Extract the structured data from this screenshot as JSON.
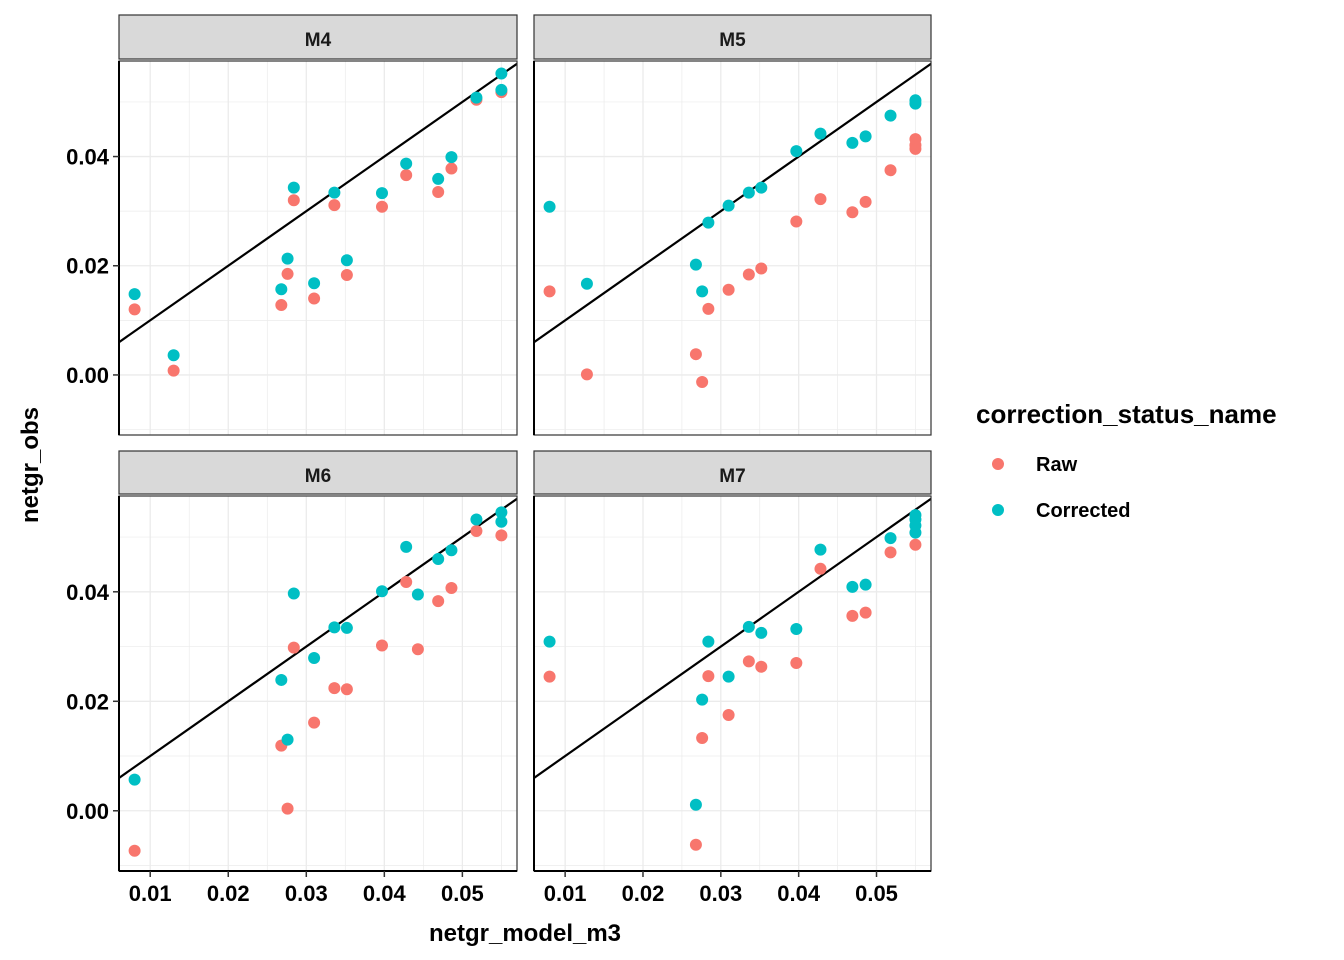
{
  "chart_data": {
    "type": "scatter",
    "xlabel": "netgr_model_m3",
    "ylabel": "netgr_obs",
    "xlim": [
      0.006,
      0.057
    ],
    "ylim": [
      -0.011,
      0.0575
    ],
    "x_ticks": [
      0.01,
      0.02,
      0.03,
      0.04,
      0.05
    ],
    "x_tick_labels": [
      "0.01",
      "0.02",
      "0.03",
      "0.04",
      "0.05"
    ],
    "y_ticks": [
      0.0,
      0.02,
      0.04
    ],
    "y_tick_labels": [
      "0.00",
      "0.02",
      "0.04"
    ],
    "grid": true,
    "reference_line": {
      "intercept": 0,
      "slope": 1
    },
    "legend": {
      "title": "correction_status_name",
      "position": "right",
      "entries": [
        {
          "name": "Raw",
          "color": "#F8766D"
        },
        {
          "name": "Corrected",
          "color": "#00BFC4"
        }
      ]
    },
    "panels": [
      {
        "name": "M4",
        "series": [
          {
            "name": "Raw",
            "color": "#F8766D",
            "points": [
              [
                0.008,
                0.012
              ],
              [
                0.013,
                0.0008
              ],
              [
                0.0268,
                0.0128
              ],
              [
                0.0276,
                0.0185
              ],
              [
                0.0284,
                0.032
              ],
              [
                0.031,
                0.014
              ],
              [
                0.0336,
                0.0311
              ],
              [
                0.0352,
                0.0183
              ],
              [
                0.0397,
                0.0308
              ],
              [
                0.0428,
                0.0366
              ],
              [
                0.0469,
                0.0335
              ],
              [
                0.0486,
                0.0378
              ],
              [
                0.0518,
                0.0504
              ],
              [
                0.055,
                0.0518
              ]
            ]
          },
          {
            "name": "Corrected",
            "color": "#00BFC4",
            "points": [
              [
                0.008,
                0.0148
              ],
              [
                0.013,
                0.0036
              ],
              [
                0.0268,
                0.0157
              ],
              [
                0.0276,
                0.0213
              ],
              [
                0.0284,
                0.0343
              ],
              [
                0.031,
                0.0168
              ],
              [
                0.0336,
                0.0334
              ],
              [
                0.0352,
                0.021
              ],
              [
                0.0397,
                0.0333
              ],
              [
                0.0428,
                0.0387
              ],
              [
                0.0469,
                0.0359
              ],
              [
                0.0486,
                0.0399
              ],
              [
                0.0518,
                0.0508
              ],
              [
                0.055,
                0.0522
              ],
              [
                0.055,
                0.0552
              ]
            ]
          }
        ]
      },
      {
        "name": "M5",
        "series": [
          {
            "name": "Raw",
            "color": "#F8766D",
            "points": [
              [
                0.008,
                0.0153
              ],
              [
                0.0128,
                0.0001
              ],
              [
                0.0268,
                0.0038
              ],
              [
                0.0276,
                -0.0013
              ],
              [
                0.0284,
                0.0121
              ],
              [
                0.031,
                0.0156
              ],
              [
                0.0336,
                0.0184
              ],
              [
                0.0352,
                0.0195
              ],
              [
                0.0397,
                0.0281
              ],
              [
                0.0428,
                0.0322
              ],
              [
                0.0469,
                0.0298
              ],
              [
                0.0486,
                0.0317
              ],
              [
                0.0518,
                0.0375
              ],
              [
                0.055,
                0.0414
              ],
              [
                0.055,
                0.0421
              ],
              [
                0.055,
                0.0432
              ]
            ]
          },
          {
            "name": "Corrected",
            "color": "#00BFC4",
            "points": [
              [
                0.008,
                0.0308
              ],
              [
                0.0128,
                0.0167
              ],
              [
                0.0268,
                0.0202
              ],
              [
                0.0276,
                0.0153
              ],
              [
                0.0284,
                0.0279
              ],
              [
                0.031,
                0.031
              ],
              [
                0.0336,
                0.0334
              ],
              [
                0.0352,
                0.0343
              ],
              [
                0.0397,
                0.041
              ],
              [
                0.0428,
                0.0442
              ],
              [
                0.0469,
                0.0425
              ],
              [
                0.0486,
                0.0437
              ],
              [
                0.0518,
                0.0475
              ],
              [
                0.055,
                0.0497
              ],
              [
                0.055,
                0.0503
              ]
            ]
          }
        ]
      },
      {
        "name": "M6",
        "series": [
          {
            "name": "Raw",
            "color": "#F8766D",
            "points": [
              [
                0.008,
                -0.0073
              ],
              [
                0.0268,
                0.0119
              ],
              [
                0.0276,
                0.0004
              ],
              [
                0.0284,
                0.0298
              ],
              [
                0.031,
                0.0161
              ],
              [
                0.0336,
                0.0224
              ],
              [
                0.0352,
                0.0222
              ],
              [
                0.0397,
                0.0302
              ],
              [
                0.0428,
                0.0418
              ],
              [
                0.0443,
                0.0295
              ],
              [
                0.0469,
                0.0383
              ],
              [
                0.0486,
                0.0407
              ],
              [
                0.0518,
                0.0511
              ],
              [
                0.055,
                0.0503
              ]
            ]
          },
          {
            "name": "Corrected",
            "color": "#00BFC4",
            "points": [
              [
                0.008,
                0.0057
              ],
              [
                0.0268,
                0.0239
              ],
              [
                0.0276,
                0.013
              ],
              [
                0.0284,
                0.0397
              ],
              [
                0.031,
                0.0279
              ],
              [
                0.0336,
                0.0335
              ],
              [
                0.0352,
                0.0334
              ],
              [
                0.0397,
                0.0401
              ],
              [
                0.0428,
                0.0482
              ],
              [
                0.0443,
                0.0395
              ],
              [
                0.0469,
                0.046
              ],
              [
                0.0486,
                0.0476
              ],
              [
                0.0518,
                0.0532
              ],
              [
                0.055,
                0.0528
              ],
              [
                0.055,
                0.0545
              ]
            ]
          }
        ]
      },
      {
        "name": "M7",
        "series": [
          {
            "name": "Raw",
            "color": "#F8766D",
            "points": [
              [
                0.008,
                0.0245
              ],
              [
                0.0268,
                -0.0062
              ],
              [
                0.0276,
                0.0133
              ],
              [
                0.0284,
                0.0246
              ],
              [
                0.031,
                0.0175
              ],
              [
                0.0336,
                0.0273
              ],
              [
                0.0352,
                0.0263
              ],
              [
                0.0397,
                0.027
              ],
              [
                0.0428,
                0.0442
              ],
              [
                0.0469,
                0.0356
              ],
              [
                0.0486,
                0.0362
              ],
              [
                0.0518,
                0.0472
              ],
              [
                0.055,
                0.0486
              ]
            ]
          },
          {
            "name": "Corrected",
            "color": "#00BFC4",
            "points": [
              [
                0.008,
                0.0309
              ],
              [
                0.0268,
                0.0011
              ],
              [
                0.0276,
                0.0203
              ],
              [
                0.0284,
                0.0309
              ],
              [
                0.031,
                0.0245
              ],
              [
                0.0336,
                0.0336
              ],
              [
                0.0352,
                0.0325
              ],
              [
                0.0397,
                0.0332
              ],
              [
                0.0428,
                0.0477
              ],
              [
                0.0469,
                0.0409
              ],
              [
                0.0486,
                0.0413
              ],
              [
                0.0518,
                0.0498
              ],
              [
                0.055,
                0.0508
              ],
              [
                0.055,
                0.0521
              ],
              [
                0.055,
                0.0532
              ],
              [
                0.055,
                0.054
              ]
            ]
          }
        ]
      }
    ]
  }
}
